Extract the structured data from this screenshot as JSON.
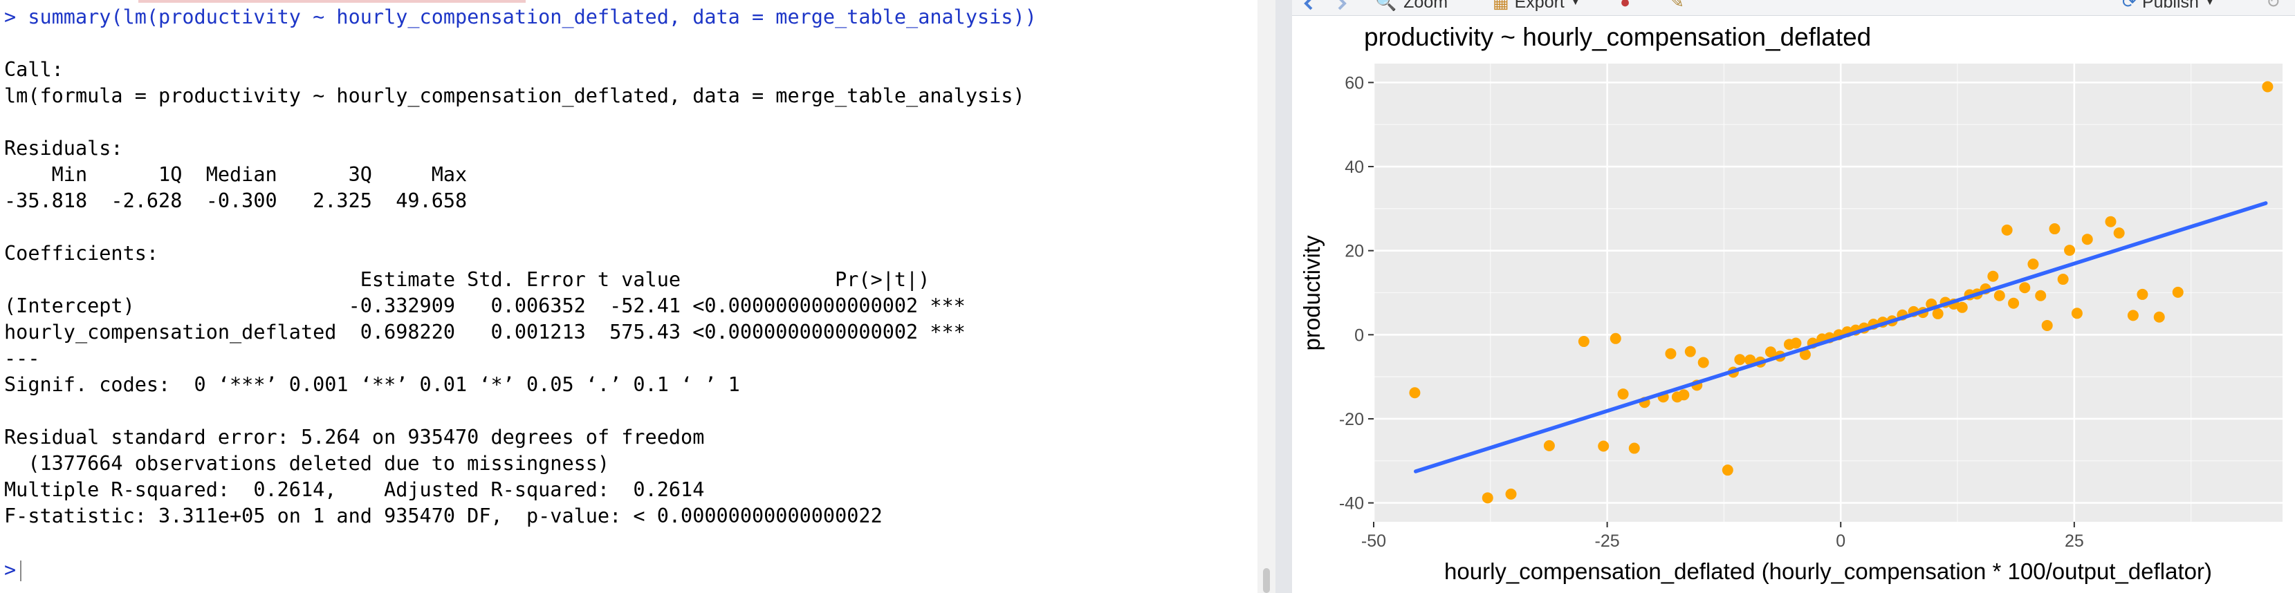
{
  "console": {
    "command": "> summary(lm(productivity ~ hourly_compensation_deflated, data = merge_table_analysis))",
    "call_header": "Call:",
    "call_formula": "lm(formula = productivity ~ hourly_compensation_deflated, data = merge_table_analysis)",
    "residuals_header": "Residuals:",
    "residuals_cols": "    Min      1Q  Median      3Q     Max ",
    "residuals_vals": "-35.818  -2.628  -0.300   2.325  49.658 ",
    "coef_header": "Coefficients:",
    "coef_cols": "                              Estimate Std. Error t value             Pr(>|t|)    ",
    "coef_row1": "(Intercept)                  -0.332909   0.006352  -52.41 <0.0000000000000002 ***",
    "coef_row2": "hourly_compensation_deflated  0.698220   0.001213  575.43 <0.0000000000000002 ***",
    "separator": "---",
    "signif": "Signif. codes:  0 ‘***’ 0.001 ‘**’ 0.01 ‘*’ 0.05 ‘.’ 0.1 ‘ ’ 1",
    "rse": "Residual standard error: 5.264 on 935470 degrees of freedom",
    "missing": "  (1377664 observations deleted due to missingness)",
    "rsq": "Multiple R-squared:  0.2614,\tAdjusted R-squared:  0.2614 ",
    "fstat": "F-statistic: 3.311e+05 on 1 and 935470 DF,  p-value: < 0.00000000000000022",
    "prompt": ">"
  },
  "toolbar": {
    "zoom_label": "Zoom",
    "export_label": "Export",
    "publish_label": "Publish"
  },
  "colors": {
    "points": "#ffa500",
    "line": "#3366ff",
    "panel": "#ebebeb",
    "grid": "#ffffff"
  },
  "chart_data": {
    "type": "scatter",
    "title": "productivity ~ hourly_compensation_deflated",
    "xlabel": "hourly_compensation_deflated (hourly_compensation * 100/output_deflator)",
    "ylabel": "productivity",
    "xlim": [
      -50,
      50
    ],
    "ylim": [
      -40,
      60
    ],
    "x_ticks": [
      -50,
      -25,
      0,
      25
    ],
    "x_tick_labels": [
      "-50",
      "-25",
      "0",
      "25"
    ],
    "y_ticks": [
      -40,
      -20,
      0,
      20,
      40,
      60
    ],
    "y_tick_labels": [
      "-40",
      "-20",
      "0",
      "20",
      "40",
      "60"
    ],
    "grid": true,
    "legend": "none",
    "fit_line": {
      "x": [
        -45.5,
        45.5
      ],
      "y": [
        -32.5,
        31.3
      ]
    },
    "points": [
      [
        -45.6,
        -13.8
      ],
      [
        -37.8,
        -38.8
      ],
      [
        -35.3,
        -37.9
      ],
      [
        -31.2,
        -26.4
      ],
      [
        -27.5,
        -1.6
      ],
      [
        -25.4,
        -26.5
      ],
      [
        -24.1,
        -0.9
      ],
      [
        -23.3,
        -14.1
      ],
      [
        -22.1,
        -27.0
      ],
      [
        -21.0,
        -16.1
      ],
      [
        -19.0,
        -14.8
      ],
      [
        -18.2,
        -4.5
      ],
      [
        -17.5,
        -14.8
      ],
      [
        -16.8,
        -14.3
      ],
      [
        -16.1,
        -4.0
      ],
      [
        -15.4,
        -12.0
      ],
      [
        -14.7,
        -6.6
      ],
      [
        -12.1,
        -32.2
      ],
      [
        -11.5,
        -8.9
      ],
      [
        -10.8,
        -5.9
      ],
      [
        -9.7,
        -6.0
      ],
      [
        -8.6,
        -6.5
      ],
      [
        -7.5,
        -4.1
      ],
      [
        -6.5,
        -5.1
      ],
      [
        -5.5,
        -2.3
      ],
      [
        -4.8,
        -2.0
      ],
      [
        -3.8,
        -4.7
      ],
      [
        -3.0,
        -2.0
      ],
      [
        -2.0,
        -1.0
      ],
      [
        -1.2,
        -0.7
      ],
      [
        -0.2,
        0.0
      ],
      [
        0.7,
        0.7
      ],
      [
        1.6,
        1.1
      ],
      [
        2.5,
        1.6
      ],
      [
        3.5,
        2.5
      ],
      [
        4.5,
        3.0
      ],
      [
        5.5,
        3.3
      ],
      [
        6.6,
        4.7
      ],
      [
        7.8,
        5.5
      ],
      [
        8.8,
        5.3
      ],
      [
        9.7,
        7.3
      ],
      [
        10.4,
        5.0
      ],
      [
        11.2,
        7.7
      ],
      [
        12.1,
        7.3
      ],
      [
        13.0,
        6.5
      ],
      [
        13.8,
        9.5
      ],
      [
        14.6,
        9.7
      ],
      [
        15.5,
        10.9
      ],
      [
        16.3,
        13.9
      ],
      [
        17.0,
        9.3
      ],
      [
        17.8,
        24.9
      ],
      [
        18.5,
        7.5
      ],
      [
        19.7,
        11.2
      ],
      [
        20.6,
        16.8
      ],
      [
        21.4,
        9.3
      ],
      [
        22.1,
        2.2
      ],
      [
        22.9,
        25.2
      ],
      [
        23.8,
        13.2
      ],
      [
        24.5,
        20.1
      ],
      [
        25.3,
        5.1
      ],
      [
        26.4,
        22.7
      ],
      [
        28.9,
        26.9
      ],
      [
        29.8,
        24.2
      ],
      [
        31.3,
        4.6
      ],
      [
        32.3,
        9.6
      ],
      [
        34.1,
        4.2
      ],
      [
        36.1,
        10.1
      ],
      [
        45.7,
        59.0
      ]
    ]
  }
}
